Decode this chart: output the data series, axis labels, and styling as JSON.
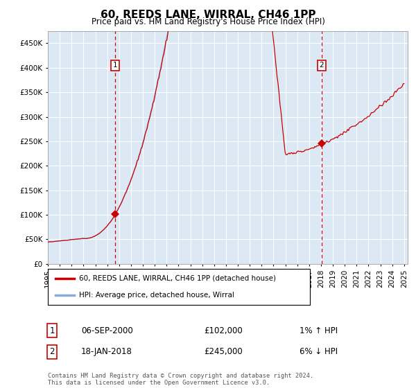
{
  "title": "60, REEDS LANE, WIRRAL, CH46 1PP",
  "subtitle": "Price paid vs. HM Land Registry's House Price Index (HPI)",
  "background_color": "#dce9f5",
  "ylim": [
    0,
    475000
  ],
  "yticks": [
    0,
    50000,
    100000,
    150000,
    200000,
    250000,
    300000,
    350000,
    400000,
    450000
  ],
  "sale1_price": 102000,
  "sale1_x": 2000.67,
  "sale2_price": 245000,
  "sale2_x": 2018.04,
  "legend_line1": "60, REEDS LANE, WIRRAL, CH46 1PP (detached house)",
  "legend_line2": "HPI: Average price, detached house, Wirral",
  "footer": "Contains HM Land Registry data © Crown copyright and database right 2024.\nThis data is licensed under the Open Government Licence v3.0.",
  "red_line_color": "#cc0000",
  "blue_line_color": "#88aadd",
  "marker_color": "#cc0000",
  "dashed_line_color": "#cc0000",
  "table_row1": [
    "1",
    "06-SEP-2000",
    "£102,000",
    "1% ↑ HPI"
  ],
  "table_row2": [
    "2",
    "18-JAN-2018",
    "£245,000",
    "6% ↓ HPI"
  ],
  "xstart": 1995,
  "xend": 2025
}
